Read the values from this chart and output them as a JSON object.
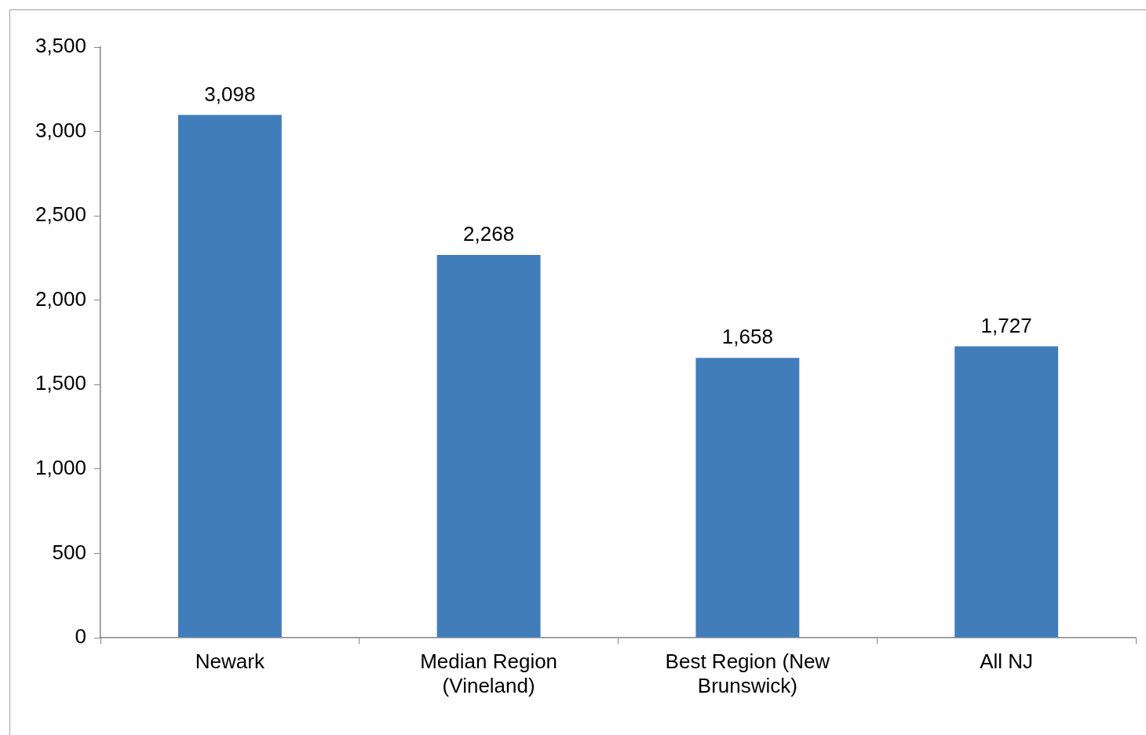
{
  "chart_data": {
    "type": "bar",
    "categories": [
      "Newark",
      "Median Region (Vineland)",
      "Best Region (New Brunswick)",
      "All NJ"
    ],
    "values": [
      3098,
      2268,
      1658,
      1727
    ],
    "value_labels": [
      "3,098",
      "2,268",
      "1,658",
      "1,727"
    ],
    "color": "#427dbb",
    "grid": false,
    "legend": false,
    "ylim": [
      0,
      3500
    ],
    "yticks": [
      0,
      500,
      {
        "value": 1000,
        "label": "1,000"
      },
      {
        "value": 1500,
        "label": "1,500"
      },
      {
        "value": 2000,
        "label": "2,000"
      },
      {
        "value": 2500,
        "label": "2,500"
      },
      {
        "value": 3000,
        "label": "3,000"
      },
      {
        "value": 3500,
        "label": "3,500"
      }
    ]
  }
}
